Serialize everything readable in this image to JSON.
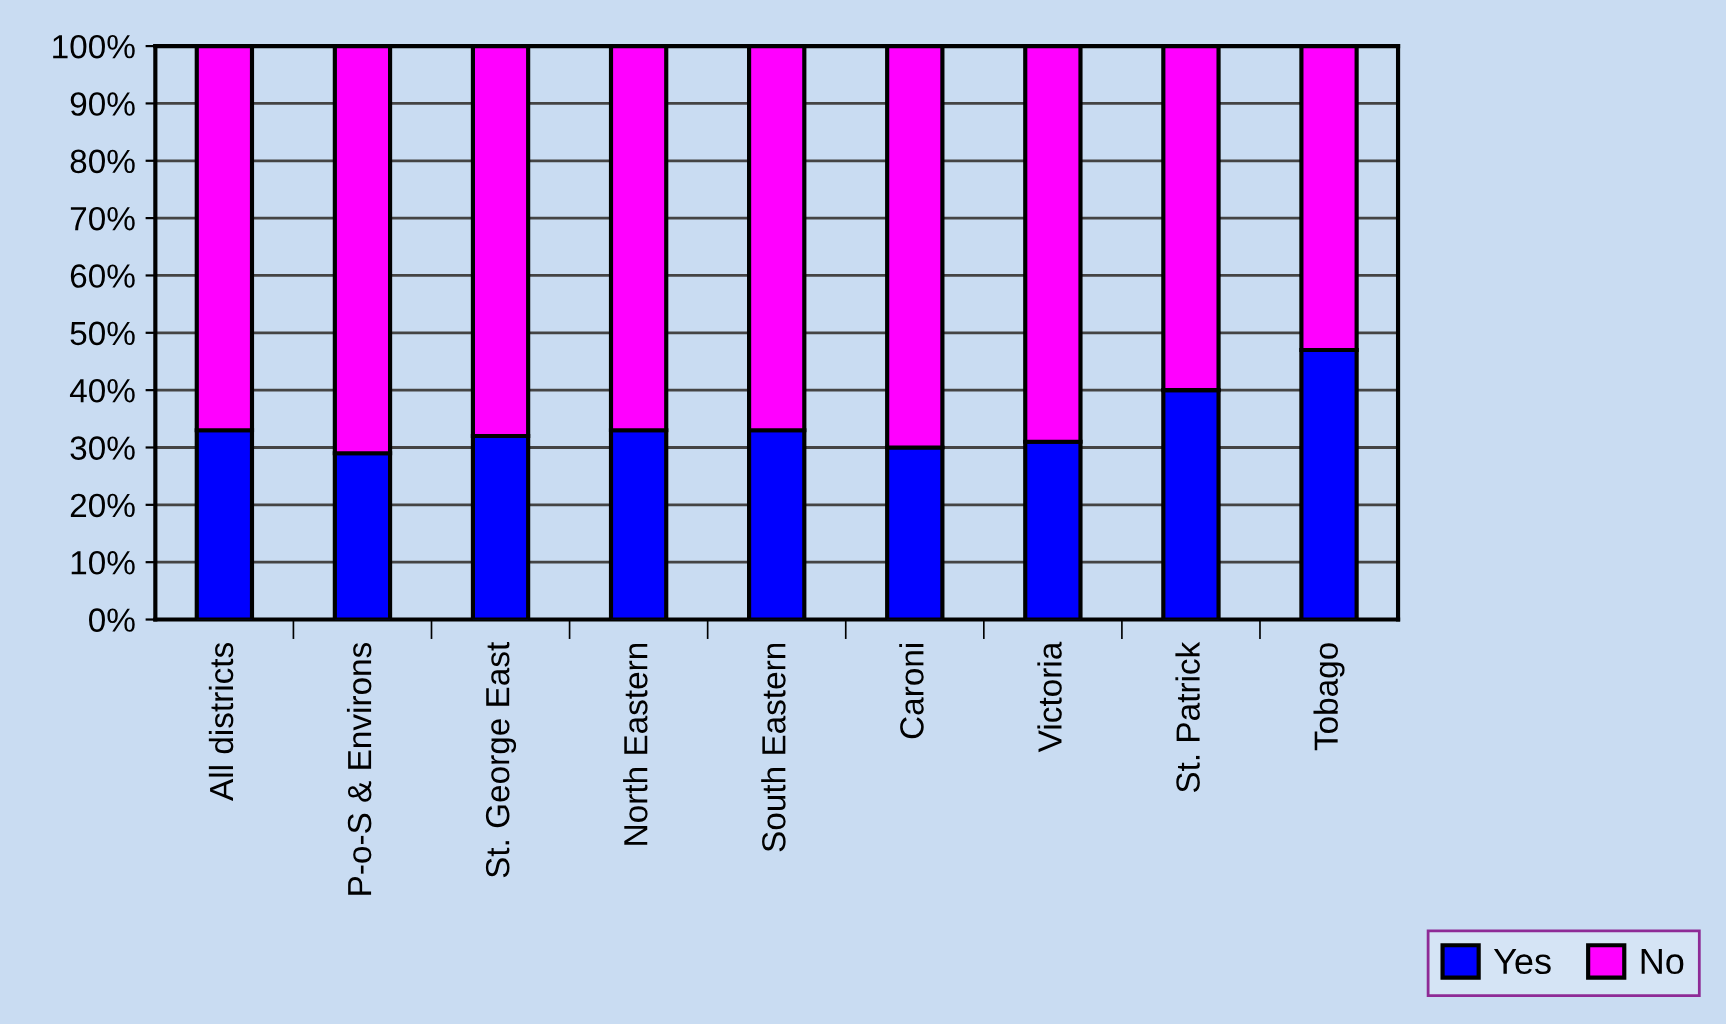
{
  "chart_data": {
    "type": "bar",
    "stacked": true,
    "categories": [
      "All districts",
      "P-o-S & Environs",
      "St. George East",
      "North Eastern",
      "South Eastern",
      "Caroni",
      "Victoria",
      "St. Patrick",
      "Tobago"
    ],
    "series": [
      {
        "name": "Yes",
        "color": "#0000ff",
        "values": [
          33,
          29,
          32,
          33,
          33,
          30,
          31,
          40,
          47
        ]
      },
      {
        "name": "No",
        "color": "#ff00ff",
        "values": [
          67,
          71,
          68,
          67,
          67,
          70,
          69,
          60,
          53
        ]
      }
    ],
    "ylim": [
      0,
      100
    ],
    "yticks": [
      {
        "value": 0,
        "label": "0%"
      },
      {
        "value": 10,
        "label": "10%"
      },
      {
        "value": 20,
        "label": "20%"
      },
      {
        "value": 30,
        "label": "30%"
      },
      {
        "value": 40,
        "label": "40%"
      },
      {
        "value": 50,
        "label": "50%"
      },
      {
        "value": 60,
        "label": "60%"
      },
      {
        "value": 70,
        "label": "70%"
      },
      {
        "value": 80,
        "label": "80%"
      },
      {
        "value": 90,
        "label": "90%"
      },
      {
        "value": 100,
        "label": "100%"
      }
    ],
    "grid": "y",
    "legend": "bottom right"
  }
}
